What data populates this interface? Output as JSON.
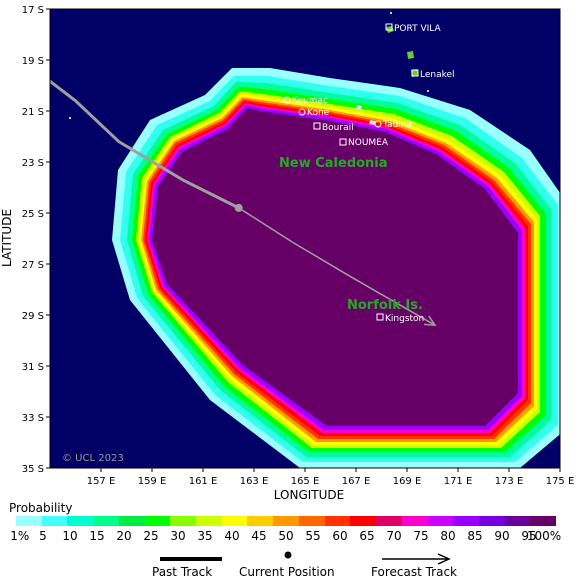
{
  "map": {
    "y_axis_label": "LATITUDE",
    "x_axis_label": "LONGITUDE",
    "lat_ticks": [
      "17 S",
      "19 S",
      "21 S",
      "23 S",
      "25 S",
      "27 S",
      "29 S",
      "31 S",
      "33 S",
      "35 S"
    ],
    "lon_ticks": [
      "157 E",
      "159 E",
      "161 E",
      "163 E",
      "165 E",
      "167 E",
      "169 E",
      "171 E",
      "173 E",
      "175 E"
    ],
    "lon_range": [
      155,
      175
    ],
    "lat_range": [
      -35,
      -17
    ],
    "ocean_color": "#000066",
    "copyright": "© UCL 2023",
    "region_labels": [
      "New Caledonia",
      "Norfolk Is."
    ],
    "places": [
      "PORT VILA",
      "Lenakel",
      "Koumac",
      "Kone",
      "Bourail",
      "Tadine",
      "NOUMEA",
      "Kingston"
    ],
    "current_position": {
      "lon": 162.4,
      "lat": -24.8
    },
    "past_track": [
      [
        154.7,
        -19.6
      ],
      [
        156.0,
        -20.6
      ],
      [
        157.7,
        -22.2
      ],
      [
        160.2,
        -23.7
      ],
      [
        162.4,
        -24.8
      ]
    ],
    "forecast_track": [
      [
        162.4,
        -24.8
      ],
      [
        164.6,
        -26.2
      ],
      [
        166.8,
        -27.5
      ],
      [
        170.1,
        -29.4
      ]
    ]
  },
  "legend": {
    "title": "Probability",
    "scale_colors": [
      "#99ffff",
      "#44ffff",
      "#00ffcc",
      "#00ff88",
      "#00ee44",
      "#00ff00",
      "#88ff00",
      "#ccff00",
      "#ffff00",
      "#ffcc00",
      "#ff9900",
      "#ff6600",
      "#ff3300",
      "#ff0000",
      "#dd0066",
      "#ff00cc",
      "#cc00ff",
      "#9900ff",
      "#7700dd",
      "#660099",
      "#660066"
    ],
    "percent_labels": [
      "1%",
      "5",
      "10",
      "15",
      "20",
      "25",
      "30",
      "35",
      "40",
      "45",
      "50",
      "55",
      "60",
      "65",
      "70",
      "75",
      "80",
      "85",
      "90",
      "95",
      "100%"
    ],
    "past_track": "Past Track",
    "current_position": "Current Position",
    "forecast_track": "Forecast Track"
  }
}
